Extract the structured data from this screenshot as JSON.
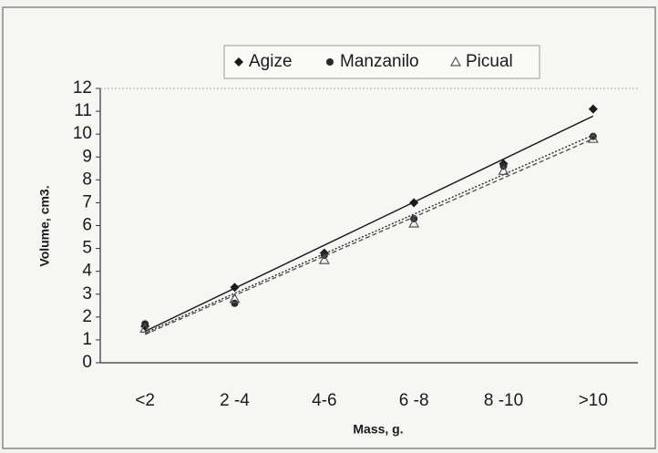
{
  "chart_data": {
    "type": "scatter",
    "x_label": "Mass, g.",
    "y_label": "Volume, cm3.",
    "categories": [
      "<2",
      "2 -4",
      "4-6",
      "6 -8",
      "8 -10",
      ">10"
    ],
    "series": [
      {
        "name": "Agize",
        "color": "#1a1a1a",
        "marker": "diamond",
        "values": [
          1.6,
          3.3,
          4.8,
          7.0,
          8.7,
          11.1
        ]
      },
      {
        "name": "Manzanilo",
        "color": "#2a2a2a",
        "marker": "circle",
        "values": [
          1.7,
          2.6,
          4.7,
          6.3,
          8.6,
          9.9
        ]
      },
      {
        "name": "Picual",
        "color": "#555555",
        "marker": "triangle",
        "values": [
          1.5,
          2.8,
          4.5,
          6.1,
          8.4,
          9.8
        ]
      }
    ],
    "trendline": "linear",
    "ylim": [
      0,
      12
    ],
    "yticks": [
      0,
      1,
      2,
      3,
      4,
      5,
      6,
      7,
      8,
      9,
      10,
      11,
      12
    ],
    "legend": "top"
  }
}
